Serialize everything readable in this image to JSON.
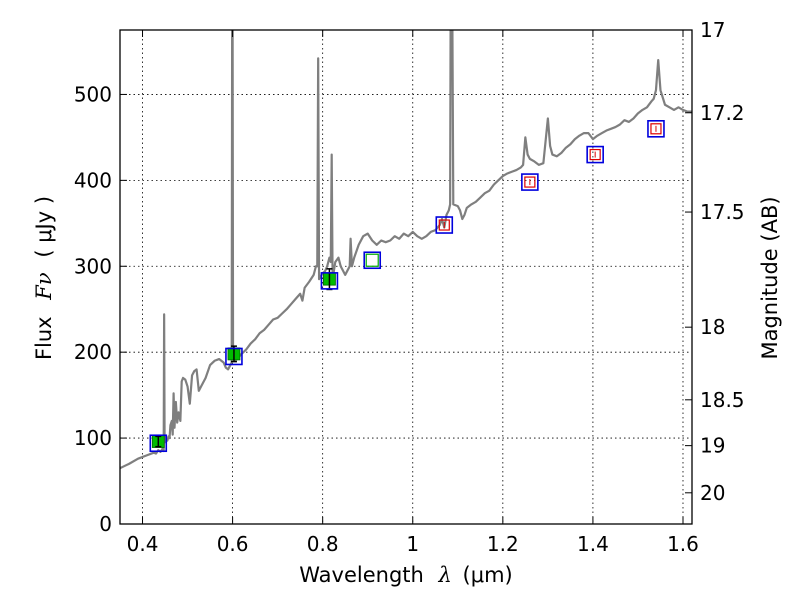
{
  "chart_data": {
    "type": "line",
    "title": "",
    "xlabel_text": "Wavelength",
    "xlabel_symbol": "λ",
    "xlabel_units": "(μm)",
    "ylabel_text": "Flux",
    "ylabel_symbol": "Fν",
    "ylabel_units": "( μJy )",
    "y2label": "Magnitude (AB)",
    "xlim": [
      0.35,
      1.62
    ],
    "ylim": [
      0,
      575
    ],
    "grid": true,
    "x_ticks": [
      0.4,
      0.6,
      0.8,
      1.0,
      1.2,
      1.4,
      1.6
    ],
    "x_tick_labels": [
      "0.4",
      "0.6",
      "0.8",
      "1",
      "1.2",
      "1.4",
      "1.6"
    ],
    "y_ticks": [
      0,
      100,
      200,
      300,
      400,
      500
    ],
    "y_tick_labels": [
      "0",
      "100",
      "200",
      "300",
      "400",
      "500"
    ],
    "y2_ticks": [
      {
        "mag": 17,
        "label": "17"
      },
      {
        "mag": 17.2,
        "label": "17.2"
      },
      {
        "mag": 17.5,
        "label": "17.5"
      },
      {
        "mag": 18,
        "label": "18"
      },
      {
        "mag": 18.5,
        "label": "18.5"
      },
      {
        "mag": 19,
        "label": "19"
      },
      {
        "mag": 20,
        "label": "20"
      }
    ],
    "colors": {
      "spectrum": "#7f7f7f",
      "observed_fill": "#00bb00",
      "model_box": "#0000dd",
      "nir_inner": "#dd0000",
      "optical_inner": "#00aa00",
      "errorbar": "#000000"
    },
    "series": [
      {
        "name": "spectrum",
        "type": "line",
        "points": [
          [
            0.35,
            65
          ],
          [
            0.37,
            70
          ],
          [
            0.39,
            76
          ],
          [
            0.41,
            80
          ],
          [
            0.425,
            83
          ],
          [
            0.43,
            82
          ],
          [
            0.435,
            86
          ],
          [
            0.44,
            84
          ],
          [
            0.445,
            88
          ],
          [
            0.447,
            85
          ],
          [
            0.448,
            244
          ],
          [
            0.449,
            95
          ],
          [
            0.452,
            100
          ],
          [
            0.455,
            97
          ],
          [
            0.458,
            102
          ],
          [
            0.46,
            100
          ],
          [
            0.462,
            115
          ],
          [
            0.465,
            120
          ],
          [
            0.467,
            104
          ],
          [
            0.469,
            152
          ],
          [
            0.471,
            112
          ],
          [
            0.474,
            142
          ],
          [
            0.477,
            118
          ],
          [
            0.48,
            130
          ],
          [
            0.484,
            120
          ],
          [
            0.487,
            166
          ],
          [
            0.49,
            170
          ],
          [
            0.495,
            168
          ],
          [
            0.5,
            160
          ],
          [
            0.505,
            140
          ],
          [
            0.51,
            173
          ],
          [
            0.515,
            178
          ],
          [
            0.52,
            180
          ],
          [
            0.525,
            155
          ],
          [
            0.53,
            160
          ],
          [
            0.54,
            170
          ],
          [
            0.55,
            185
          ],
          [
            0.56,
            190
          ],
          [
            0.57,
            192
          ],
          [
            0.58,
            188
          ],
          [
            0.585,
            182
          ],
          [
            0.59,
            180
          ],
          [
            0.595,
            185
          ],
          [
            0.598,
            188
          ],
          [
            0.599,
            580
          ],
          [
            0.6,
            580
          ],
          [
            0.601,
            195
          ],
          [
            0.605,
            190
          ],
          [
            0.61,
            192
          ],
          [
            0.62,
            198
          ],
          [
            0.63,
            203
          ],
          [
            0.64,
            210
          ],
          [
            0.65,
            215
          ],
          [
            0.66,
            222
          ],
          [
            0.67,
            226
          ],
          [
            0.68,
            232
          ],
          [
            0.69,
            238
          ],
          [
            0.7,
            240
          ],
          [
            0.71,
            245
          ],
          [
            0.72,
            250
          ],
          [
            0.73,
            256
          ],
          [
            0.74,
            262
          ],
          [
            0.75,
            268
          ],
          [
            0.755,
            260
          ],
          [
            0.76,
            275
          ],
          [
            0.77,
            282
          ],
          [
            0.78,
            290
          ],
          [
            0.785,
            300
          ],
          [
            0.788,
            300
          ],
          [
            0.79,
            542
          ],
          [
            0.792,
            285
          ],
          [
            0.8,
            292
          ],
          [
            0.805,
            294
          ],
          [
            0.81,
            300
          ],
          [
            0.815,
            310
          ],
          [
            0.818,
            305
          ],
          [
            0.82,
            430
          ],
          [
            0.822,
            285
          ],
          [
            0.828,
            305
          ],
          [
            0.835,
            310
          ],
          [
            0.84,
            300
          ],
          [
            0.85,
            290
          ],
          [
            0.855,
            295
          ],
          [
            0.86,
            300
          ],
          [
            0.862,
            332
          ],
          [
            0.865,
            300
          ],
          [
            0.87,
            310
          ],
          [
            0.88,
            325
          ],
          [
            0.89,
            335
          ],
          [
            0.9,
            338
          ],
          [
            0.91,
            330
          ],
          [
            0.92,
            325
          ],
          [
            0.93,
            330
          ],
          [
            0.94,
            328
          ],
          [
            0.95,
            330
          ],
          [
            0.96,
            335
          ],
          [
            0.97,
            332
          ],
          [
            0.98,
            338
          ],
          [
            0.99,
            335
          ],
          [
            1.0,
            340
          ],
          [
            1.01,
            335
          ],
          [
            1.02,
            332
          ],
          [
            1.03,
            335
          ],
          [
            1.04,
            340
          ],
          [
            1.05,
            342
          ],
          [
            1.06,
            348
          ],
          [
            1.065,
            355
          ],
          [
            1.07,
            345
          ],
          [
            1.075,
            360
          ],
          [
            1.08,
            365
          ],
          [
            1.083,
            372
          ],
          [
            1.084,
            580
          ],
          [
            1.088,
            580
          ],
          [
            1.09,
            372
          ],
          [
            1.1,
            370
          ],
          [
            1.105,
            365
          ],
          [
            1.11,
            355
          ],
          [
            1.115,
            360
          ],
          [
            1.12,
            368
          ],
          [
            1.13,
            372
          ],
          [
            1.14,
            375
          ],
          [
            1.15,
            380
          ],
          [
            1.16,
            385
          ],
          [
            1.17,
            388
          ],
          [
            1.18,
            395
          ],
          [
            1.19,
            400
          ],
          [
            1.2,
            405
          ],
          [
            1.21,
            408
          ],
          [
            1.22,
            410
          ],
          [
            1.23,
            412
          ],
          [
            1.24,
            415
          ],
          [
            1.245,
            418
          ],
          [
            1.25,
            450
          ],
          [
            1.255,
            430
          ],
          [
            1.26,
            425
          ],
          [
            1.27,
            422
          ],
          [
            1.28,
            418
          ],
          [
            1.29,
            420
          ],
          [
            1.3,
            472
          ],
          [
            1.305,
            440
          ],
          [
            1.31,
            430
          ],
          [
            1.32,
            428
          ],
          [
            1.33,
            432
          ],
          [
            1.34,
            438
          ],
          [
            1.35,
            442
          ],
          [
            1.36,
            448
          ],
          [
            1.37,
            452
          ],
          [
            1.38,
            455
          ],
          [
            1.39,
            455
          ],
          [
            1.4,
            448
          ],
          [
            1.41,
            452
          ],
          [
            1.42,
            455
          ],
          [
            1.43,
            458
          ],
          [
            1.44,
            460
          ],
          [
            1.45,
            462
          ],
          [
            1.46,
            465
          ],
          [
            1.47,
            470
          ],
          [
            1.48,
            468
          ],
          [
            1.49,
            472
          ],
          [
            1.5,
            478
          ],
          [
            1.51,
            482
          ],
          [
            1.52,
            485
          ],
          [
            1.53,
            492
          ],
          [
            1.535,
            495
          ],
          [
            1.54,
            505
          ],
          [
            1.545,
            540
          ],
          [
            1.55,
            505
          ],
          [
            1.56,
            488
          ],
          [
            1.57,
            485
          ],
          [
            1.58,
            482
          ],
          [
            1.59,
            485
          ],
          [
            1.6,
            482
          ],
          [
            1.61,
            480
          ],
          [
            1.62,
            480
          ]
        ]
      },
      {
        "name": "observed_photometry",
        "type": "errorbar",
        "points": [
          {
            "x": 0.435,
            "y": 96,
            "err": 6
          },
          {
            "x": 0.603,
            "y": 198,
            "err": 9
          },
          {
            "x": 0.815,
            "y": 285,
            "err": 12
          }
        ]
      },
      {
        "name": "model_photometry",
        "type": "scatter",
        "points": [
          {
            "x": 0.435,
            "y": 94,
            "inner": "none"
          },
          {
            "x": 0.603,
            "y": 195,
            "inner": "none"
          },
          {
            "x": 0.815,
            "y": 283,
            "inner": "none"
          },
          {
            "x": 0.91,
            "y": 307,
            "inner": "green"
          },
          {
            "x": 1.07,
            "y": 348,
            "inner": "red"
          },
          {
            "x": 1.26,
            "y": 398,
            "inner": "red"
          },
          {
            "x": 1.405,
            "y": 430,
            "inner": "red"
          },
          {
            "x": 1.54,
            "y": 460,
            "inner": "red"
          }
        ]
      }
    ]
  }
}
